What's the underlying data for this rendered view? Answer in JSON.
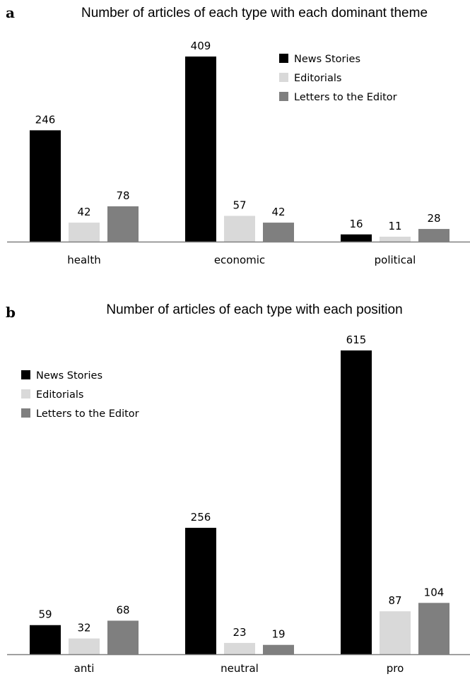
{
  "chart_data": [
    {
      "panel": "a",
      "type": "bar",
      "title": "Number of articles of each type with each dominant theme",
      "categories": [
        "health",
        "economic",
        "political"
      ],
      "series": [
        {
          "name": "News Stories",
          "values": [
            246,
            409,
            16
          ],
          "color": "#000000"
        },
        {
          "name": "Editorials",
          "values": [
            42,
            57,
            11
          ],
          "color": "#d9d9d9"
        },
        {
          "name": "Letters to the Editor",
          "values": [
            78,
            42,
            28
          ],
          "color": "#7f7f7f"
        }
      ],
      "ylim": [
        0,
        409
      ],
      "grid": false,
      "legend_position": "top-right"
    },
    {
      "panel": "b",
      "type": "bar",
      "title": "Number of articles of each type with each position",
      "categories": [
        "anti",
        "neutral",
        "pro"
      ],
      "series": [
        {
          "name": "News Stories",
          "values": [
            59,
            256,
            615
          ],
          "color": "#000000"
        },
        {
          "name": "Editorials",
          "values": [
            32,
            23,
            87
          ],
          "color": "#d9d9d9"
        },
        {
          "name": "Letters to the Editor",
          "values": [
            68,
            19,
            104
          ],
          "color": "#7f7f7f"
        }
      ],
      "ylim": [
        0,
        615
      ],
      "grid": false,
      "legend_position": "top-left"
    }
  ]
}
